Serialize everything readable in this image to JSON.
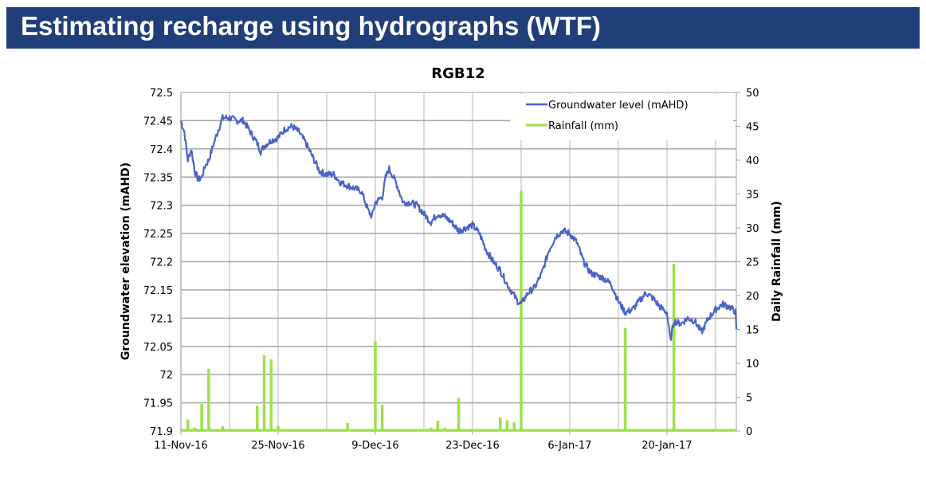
{
  "slide": {
    "title": "Estimating recharge using hydrographs (WTF)",
    "banner_color": "#203f7a"
  },
  "chart_data": {
    "type": "line",
    "title": "RGB12",
    "xlabel": "",
    "ylabel": "Groundwater elevation (mAHD)",
    "y2label": "Daily Rainfall (mm)",
    "ylim": [
      71.9,
      72.5
    ],
    "y2lim": [
      0,
      50
    ],
    "x_start_date": "11-Nov-16",
    "x_span_days": 80,
    "x_tick_labels": [
      "11-Nov-16",
      "25-Nov-16",
      "9-Dec-16",
      "23-Dec-16",
      "6-Jan-17",
      "20-Jan-17"
    ],
    "x_tick_days": [
      0,
      14,
      28,
      42,
      56,
      70
    ],
    "y_tick_labels": [
      "72.5",
      "72.45",
      "72.4",
      "72.35",
      "72.3",
      "72.25",
      "72.2",
      "72.15",
      "72.1",
      "72.05",
      "72",
      "71.95",
      "71.9"
    ],
    "y2_tick_labels": [
      "50",
      "45",
      "40",
      "35",
      "30",
      "25",
      "20",
      "15",
      "10",
      "5",
      "0"
    ],
    "grid": true,
    "legend_position": "top-right",
    "legend": [
      {
        "name": "Groundwater level (mAHD)",
        "color": "#4a63c8"
      },
      {
        "name": "Rainfall (mm)",
        "color": "#9ee04a"
      }
    ],
    "series": [
      {
        "name": "Groundwater level (mAHD)",
        "axis": "left",
        "type": "line",
        "color": "#4a63c8",
        "days": [
          0,
          0.5,
          1,
          1.5,
          2,
          2.5,
          3,
          3.5,
          4,
          5,
          6,
          7,
          8,
          9,
          10,
          11,
          11.5,
          12,
          13,
          14,
          15,
          16,
          17,
          18,
          19,
          20,
          21,
          22,
          23,
          24,
          25,
          26,
          27,
          27.5,
          28,
          29,
          29.5,
          30,
          31,
          32,
          33,
          34,
          35,
          36,
          37,
          38,
          39,
          40,
          41,
          42,
          43,
          44,
          45,
          46,
          47,
          48,
          48.5,
          49,
          50,
          51,
          52,
          53,
          54,
          55,
          56,
          57,
          58,
          59,
          60,
          61,
          62,
          63,
          64,
          65,
          66,
          67,
          68,
          69,
          70,
          70.5,
          71,
          72,
          73,
          74,
          75,
          76,
          77,
          78,
          79,
          80
        ],
        "values": [
          72.45,
          72.43,
          72.38,
          72.4,
          72.36,
          72.345,
          72.35,
          72.37,
          72.38,
          72.42,
          72.455,
          72.455,
          72.45,
          72.45,
          72.43,
          72.41,
          72.395,
          72.405,
          72.415,
          72.42,
          72.435,
          72.44,
          72.43,
          72.41,
          72.385,
          72.36,
          72.355,
          72.355,
          72.34,
          72.335,
          72.33,
          72.325,
          72.29,
          72.28,
          72.305,
          72.315,
          72.35,
          72.365,
          72.34,
          72.305,
          72.305,
          72.3,
          72.285,
          72.27,
          72.285,
          72.28,
          72.27,
          72.255,
          72.26,
          72.265,
          72.25,
          72.22,
          72.2,
          72.185,
          72.16,
          72.14,
          72.13,
          72.125,
          72.145,
          72.155,
          72.18,
          72.22,
          72.245,
          72.255,
          72.25,
          72.235,
          72.2,
          72.18,
          72.175,
          72.17,
          72.16,
          72.13,
          72.11,
          72.115,
          72.13,
          72.145,
          72.135,
          72.12,
          72.11,
          72.06,
          72.095,
          72.09,
          72.1,
          72.095,
          72.075,
          72.1,
          72.115,
          72.125,
          72.12,
          72.11,
          72.08
        ]
      },
      {
        "name": "Rainfall (mm)",
        "axis": "right",
        "type": "bar",
        "color": "#9ee04a",
        "days": [
          1,
          2,
          3,
          4,
          6,
          11,
          12,
          13,
          14,
          24,
          28,
          29,
          36,
          37,
          38,
          39,
          40,
          46,
          47,
          48,
          49,
          50,
          53,
          64,
          71,
          75
        ],
        "values": [
          1.7,
          0.5,
          4.0,
          9.2,
          0.7,
          3.7,
          11.2,
          10.6,
          0.7,
          1.2,
          13.3,
          3.9,
          0.5,
          1.5,
          0.5,
          0.2,
          4.9,
          2.0,
          1.6,
          1.3,
          35.5,
          0.2,
          0.2,
          15.2,
          24.7,
          0.3
        ]
      }
    ]
  }
}
